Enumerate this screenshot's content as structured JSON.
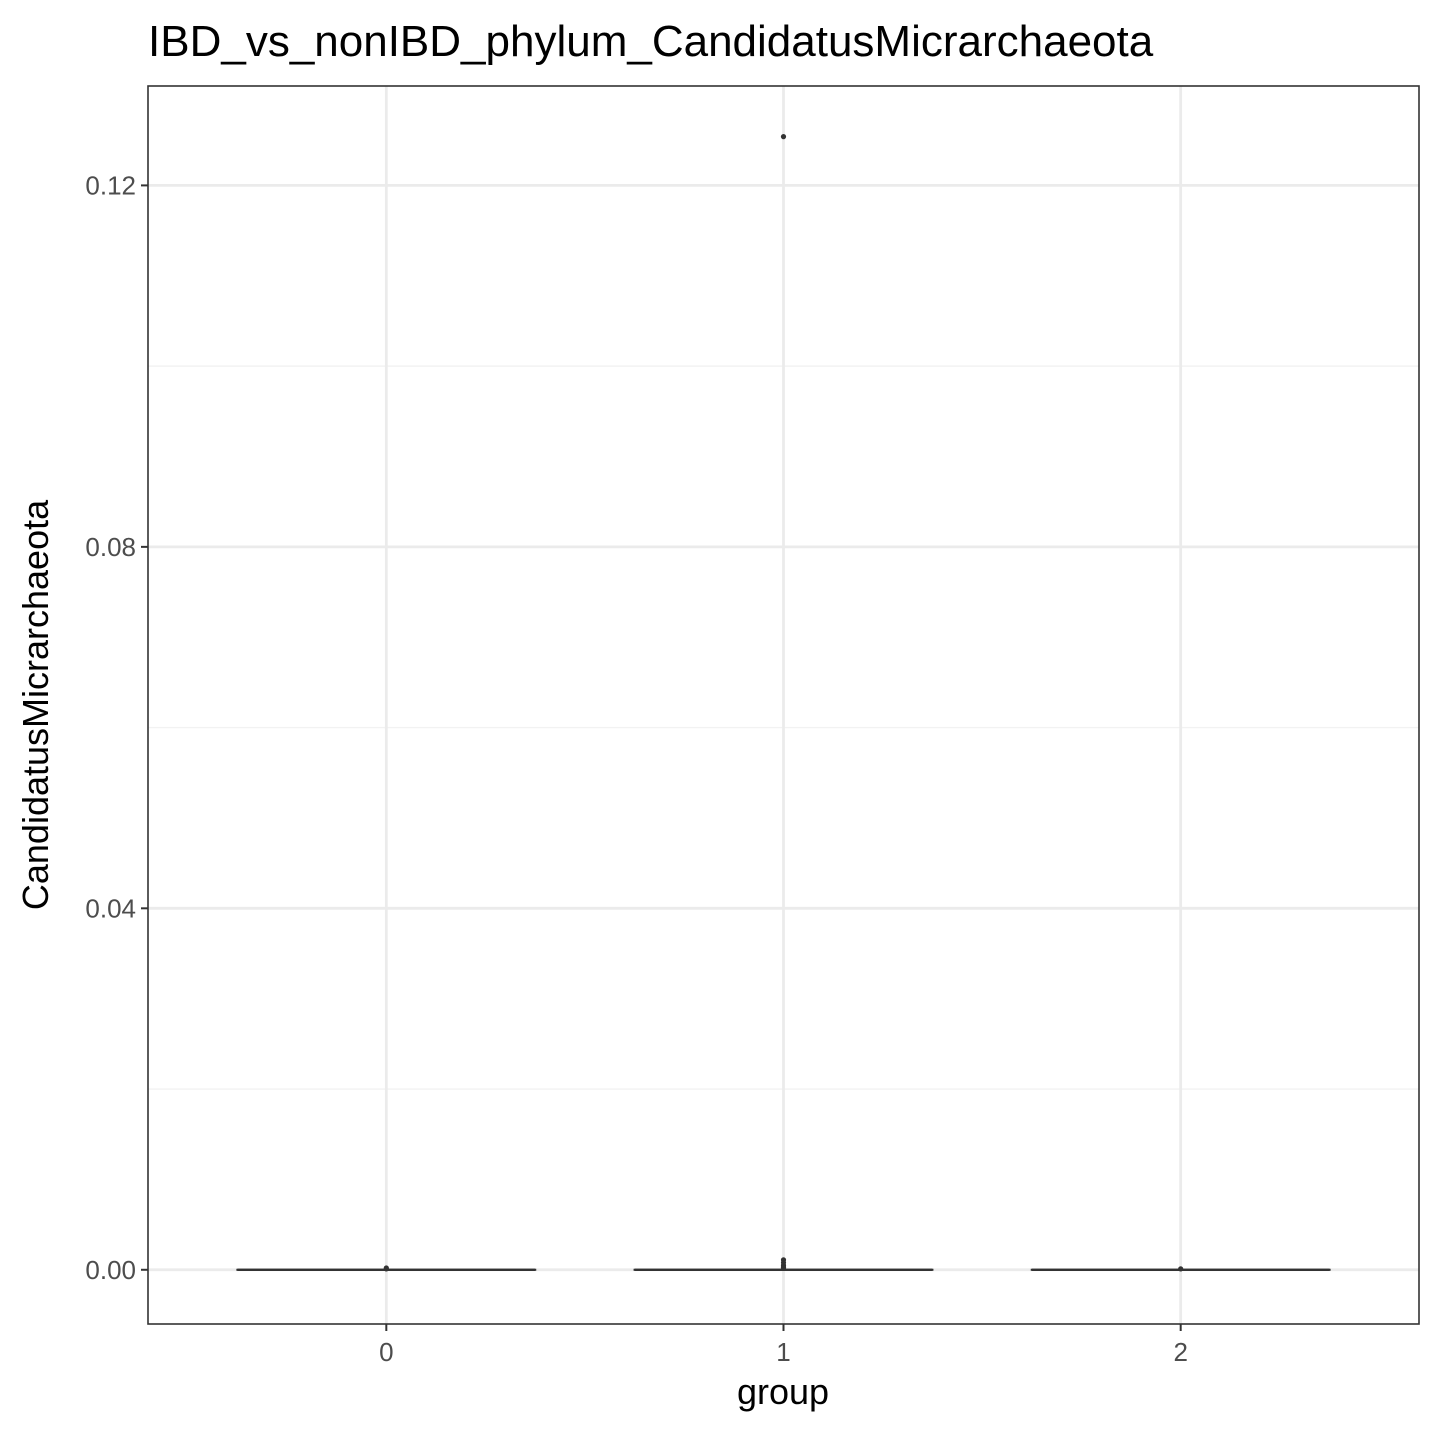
{
  "chart_data": {
    "type": "box",
    "title": "IBD_vs_nonIBD_phylum_CandidatusMicrarchaeota",
    "xlabel": "group",
    "ylabel": "CandidatusMicrarchaeota",
    "categories": [
      "0",
      "1",
      "2"
    ],
    "ylim": [
      -0.006,
      0.131
    ],
    "yticks": [
      0.0,
      0.04,
      0.08,
      0.12
    ],
    "ytick_labels": [
      "0.00",
      "0.04",
      "0.08",
      "0.12"
    ],
    "y_minor_ticks": [
      0.02,
      0.06,
      0.1
    ],
    "grid": true,
    "boxes": [
      {
        "group": "0",
        "q1": 0,
        "median": 0,
        "q3": 0,
        "whisker_low": 0,
        "whisker_high": 0,
        "outliers": [
          0.0001,
          0.0002
        ]
      },
      {
        "group": "1",
        "q1": 0,
        "median": 0,
        "q3": 0,
        "whisker_low": 0,
        "whisker_high": 0,
        "outliers": [
          0.1254,
          0.0011,
          0.0008,
          0.0005,
          0.0003,
          0.0002
        ]
      },
      {
        "group": "2",
        "q1": 0,
        "median": 0,
        "q3": 0,
        "whisker_low": 0,
        "whisker_high": 0,
        "outliers": [
          0.0001
        ]
      }
    ]
  },
  "colors": {
    "background": "#ffffff",
    "panel_border": "#333333",
    "grid_major": "#ebebeb",
    "grid_minor": "#f2f2f2",
    "box_line": "#333333",
    "point": "#333333",
    "tick_text": "#4d4d4d",
    "title_text": "#000000"
  }
}
